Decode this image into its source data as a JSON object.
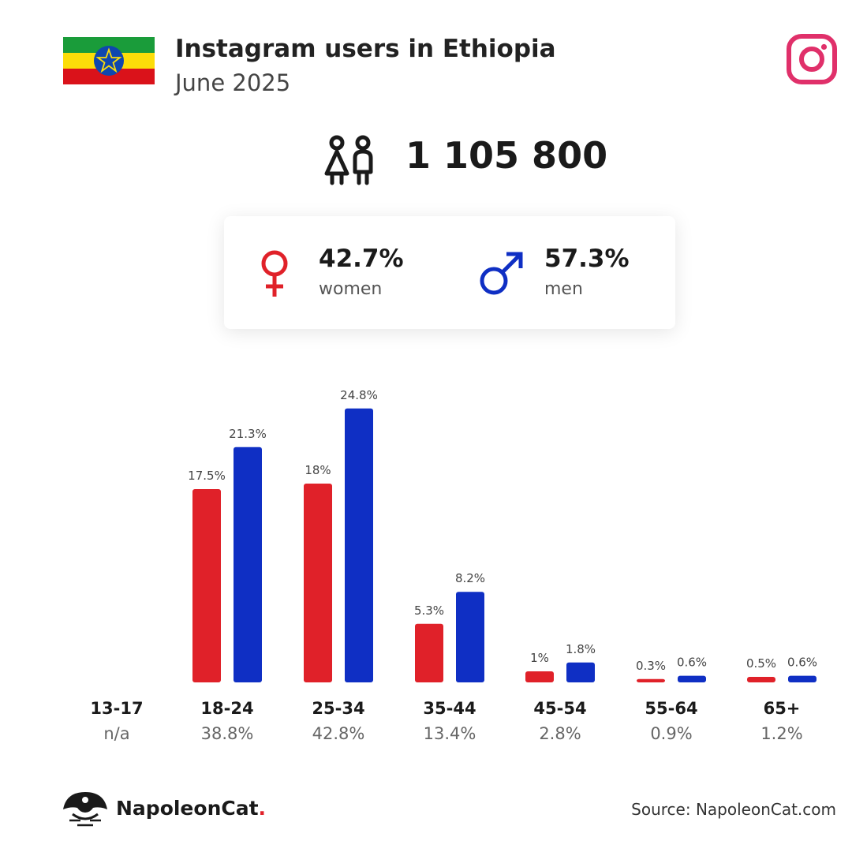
{
  "header": {
    "title": "Instagram users in Ethiopia",
    "subtitle": "June 2025"
  },
  "icons": {
    "flag": "ethiopia-flag-icon",
    "platform": "instagram-icon",
    "users": "users-icon",
    "female": "female-symbol-icon",
    "male": "male-symbol-icon",
    "brand": "napoleoncat-icon"
  },
  "total": {
    "value": "1 105 800"
  },
  "gender": {
    "women": {
      "pct": "42.7%",
      "label": "women"
    },
    "men": {
      "pct": "57.3%",
      "label": "men"
    }
  },
  "colors": {
    "women": "#e02129",
    "men": "#0f2fc4",
    "instagram": "#e0306a"
  },
  "chart_data": {
    "type": "bar",
    "categories": [
      "13-17",
      "18-24",
      "25-34",
      "35-44",
      "45-54",
      "55-64",
      "65+"
    ],
    "category_totals": [
      "n/a",
      "38.8%",
      "42.8%",
      "13.4%",
      "2.8%",
      "0.9%",
      "1.2%"
    ],
    "series": [
      {
        "name": "women",
        "color": "#e02129",
        "values": [
          null,
          17.5,
          18,
          5.3,
          1,
          0.3,
          0.5
        ],
        "labels": [
          "",
          "17.5%",
          "18%",
          "5.3%",
          "1%",
          "0.3%",
          "0.5%"
        ]
      },
      {
        "name": "men",
        "color": "#0f2fc4",
        "values": [
          null,
          21.3,
          24.8,
          8.2,
          1.8,
          0.6,
          0.6
        ],
        "labels": [
          "",
          "21.3%",
          "24.8%",
          "8.2%",
          "1.8%",
          "0.6%",
          "0.6%"
        ]
      }
    ],
    "ylim": [
      0,
      25
    ],
    "grid": false
  },
  "footer": {
    "brand": "NapoleonCat",
    "brand_dot": ".",
    "source": "Source: NapoleonCat.com"
  }
}
